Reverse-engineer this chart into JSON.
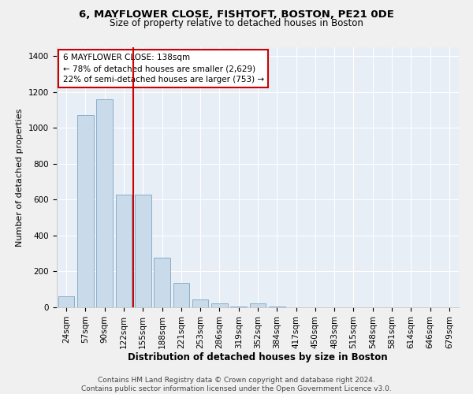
{
  "title": "6, MAYFLOWER CLOSE, FISHTOFT, BOSTON, PE21 0DE",
  "subtitle": "Size of property relative to detached houses in Boston",
  "xlabel": "Distribution of detached houses by size in Boston",
  "ylabel": "Number of detached properties",
  "bar_color": "#c9daea",
  "bar_edge_color": "#6699bb",
  "bg_color": "#e8eef6",
  "grid_color": "#ffffff",
  "vline_color": "#cc0000",
  "categories": [
    "24sqm",
    "57sqm",
    "90sqm",
    "122sqm",
    "155sqm",
    "188sqm",
    "221sqm",
    "253sqm",
    "286sqm",
    "319sqm",
    "352sqm",
    "384sqm",
    "417sqm",
    "450sqm",
    "483sqm",
    "515sqm",
    "548sqm",
    "581sqm",
    "614sqm",
    "646sqm",
    "679sqm"
  ],
  "values": [
    62,
    1070,
    1160,
    630,
    630,
    275,
    138,
    45,
    22,
    5,
    22,
    5,
    0,
    0,
    0,
    0,
    0,
    0,
    0,
    0,
    0
  ],
  "vline_x": 3.48,
  "annotation_line1": "6 MAYFLOWER CLOSE: 138sqm",
  "annotation_line2": "← 78% of detached houses are smaller (2,629)",
  "annotation_line3": "22% of semi-detached houses are larger (753) →",
  "footer_line1": "Contains HM Land Registry data © Crown copyright and database right 2024.",
  "footer_line2": "Contains public sector information licensed under the Open Government Licence v3.0.",
  "ylim": [
    0,
    1450
  ],
  "yticks": [
    0,
    200,
    400,
    600,
    800,
    1000,
    1200,
    1400
  ],
  "title_fontsize": 9.5,
  "subtitle_fontsize": 8.5,
  "xlabel_fontsize": 8.5,
  "ylabel_fontsize": 8,
  "tick_fontsize": 7.5,
  "annotation_fontsize": 7.5,
  "footer_fontsize": 6.5
}
